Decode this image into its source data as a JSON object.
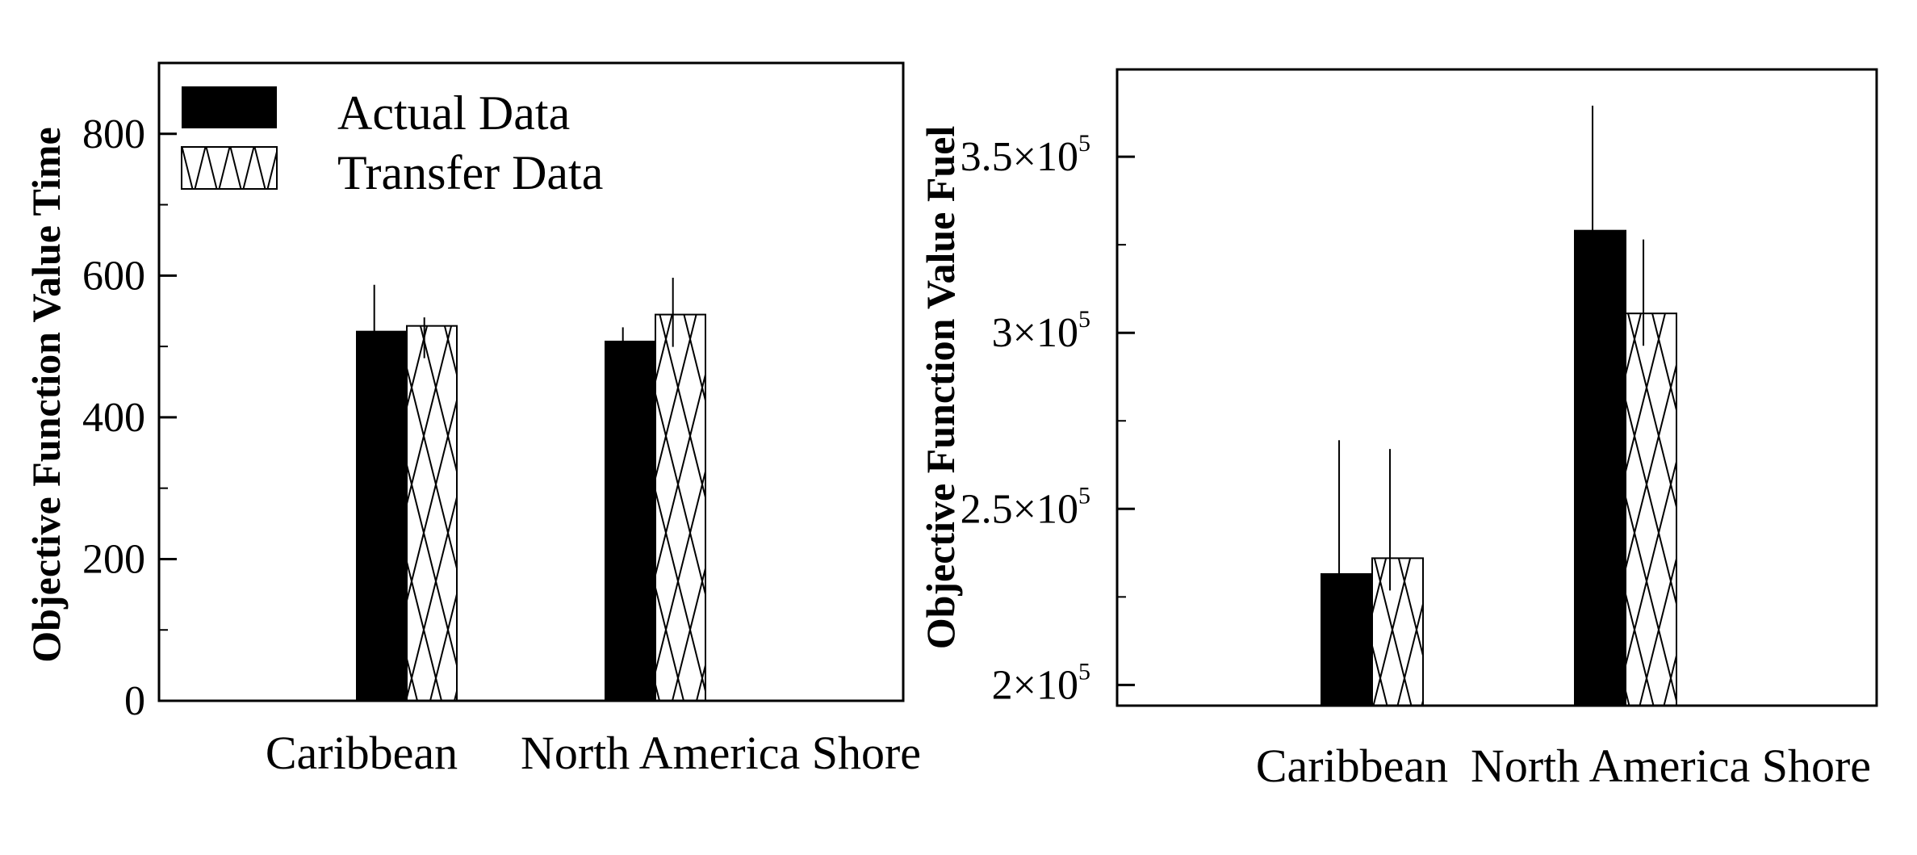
{
  "chart_data": [
    {
      "type": "bar",
      "ylabel": "Objective Function Value Time",
      "xlabel": "",
      "categories": [
        "Caribbean",
        "North America Shore"
      ],
      "series": [
        {
          "name": "Actual Data",
          "values": [
            521,
            507
          ],
          "error": [
            66,
            20
          ],
          "fill": "solid"
        },
        {
          "name": "Transfer Data",
          "values": [
            529,
            545
          ],
          "error": [
            12,
            52
          ],
          "fill": "crosshatch"
        }
      ],
      "ylim": [
        0,
        900
      ],
      "yticks": [
        0,
        200,
        400,
        600,
        800
      ],
      "ytick_labels": [
        "0",
        "200",
        "400",
        "600",
        "800"
      ],
      "legend": "top-left",
      "grid": false
    },
    {
      "type": "bar",
      "ylabel": "Objective Function Value Fuel",
      "xlabel": "",
      "categories": [
        "Caribbean",
        "North America Shore"
      ],
      "series": [
        {
          "name": "Actual Data",
          "values": [
            231500,
            329000
          ],
          "error": [
            38000,
            35500
          ]
        },
        {
          "name": "Transfer Data",
          "values": [
            236000,
            305500
          ],
          "error": [
            31000,
            21000
          ]
        }
      ],
      "ylim": [
        194000,
        375000
      ],
      "yticks": [
        200000,
        250000,
        300000,
        350000
      ],
      "ytick_labels": [
        {
          "mantissa": "2×10",
          "exp": "5"
        },
        {
          "mantissa": "2.5×10",
          "exp": "5"
        },
        {
          "mantissa": "3×10",
          "exp": "5"
        },
        {
          "mantissa": "3.5×10",
          "exp": "5"
        }
      ],
      "legend": "none",
      "grid": false
    }
  ],
  "colors": {
    "actual": "#000000",
    "transfer_fill": "#ffffff",
    "axis": "#000000"
  }
}
